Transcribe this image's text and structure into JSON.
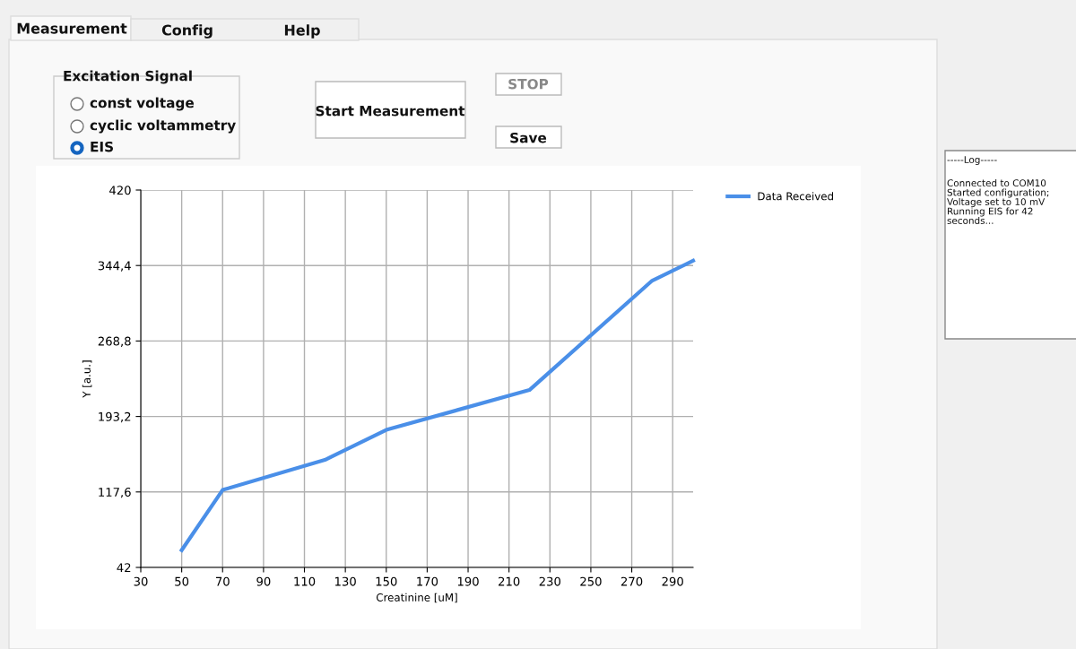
{
  "chart_data": {
    "type": "line",
    "xlabel": "Creatinine [uM]",
    "ylabel": "Y [a.u.]",
    "x": [
      50,
      70,
      120,
      150,
      220,
      280,
      300
    ],
    "series": [
      {
        "name": "Data Received",
        "color": "#4a8fe8",
        "values": [
          59.3,
          119.6,
          149.7,
          179.8,
          219.7,
          329.3,
          349.2
        ]
      }
    ],
    "xlim": [
      30,
      300
    ],
    "xticks": [
      30,
      50,
      70,
      90,
      110,
      130,
      150,
      170,
      190,
      210,
      230,
      250,
      270,
      290
    ],
    "ylim": [
      42,
      420
    ],
    "yticks": [
      {
        "value": 42,
        "label": "42"
      },
      {
        "value": 117.6,
        "label": "117,6"
      },
      {
        "value": 193.2,
        "label": "193,2"
      },
      {
        "value": 268.8,
        "label": "268,8"
      },
      {
        "value": 344.4,
        "label": "344,4"
      },
      {
        "value": 420,
        "label": "420"
      }
    ],
    "grid": true,
    "legend": "top right",
    "marker": "none",
    "line_style": "solid",
    "annotations": [
      "Measurement",
      "Config",
      "Help",
      "Excitation Signal",
      "const voltage",
      "cyclic voltammetry",
      "EIS",
      "Start Measurement",
      "STOP",
      "Save",
      "-----Log-----",
      "Connected to COM10\nStarted configuration;\nVoltage set to 10 mV\nRunning EIS for 42\nseconds..."
    ]
  }
}
